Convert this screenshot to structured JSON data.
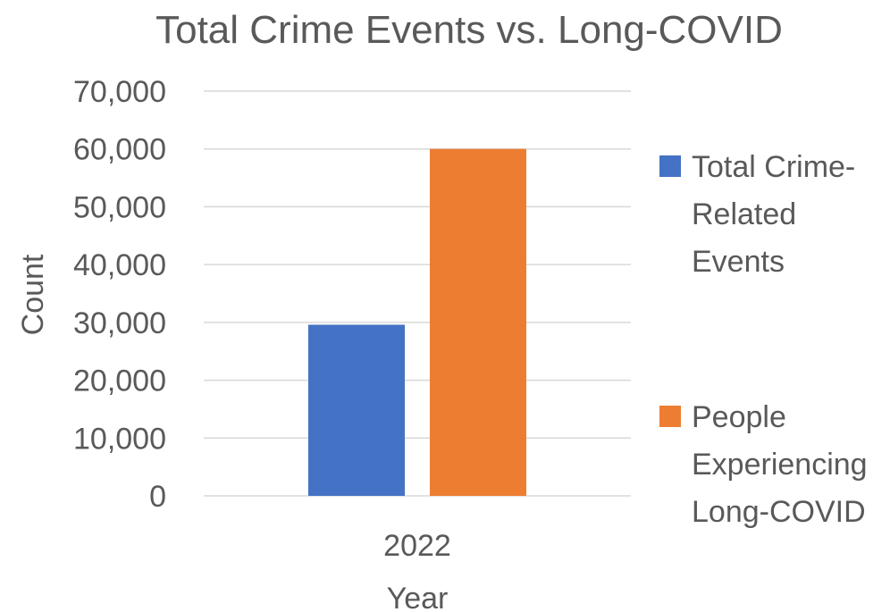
{
  "chart_data": {
    "type": "bar",
    "title": "Total Crime Events vs. Long-COVID",
    "xlabel": "Year",
    "ylabel": "Count",
    "categories": [
      "2022"
    ],
    "series": [
      {
        "name": "Total Crime-Related Events",
        "values": [
          29600
        ],
        "color": "#4472C4"
      },
      {
        "name": "People Experiencing Long-COVID",
        "values": [
          60000
        ],
        "color": "#ED7D31"
      }
    ],
    "ylim": [
      0,
      70000
    ],
    "yticks": [
      "0",
      "10,000",
      "20,000",
      "30,000",
      "40,000",
      "50,000",
      "60,000",
      "70,000"
    ],
    "grid": true,
    "gridline_color": "#D9D9D9",
    "legend_position": "right"
  }
}
